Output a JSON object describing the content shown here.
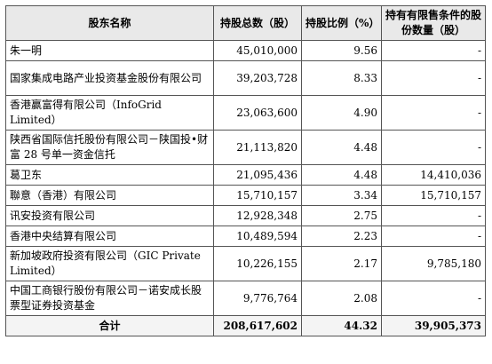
{
  "table": {
    "headers": [
      "股东名称",
      "持股总数（股）",
      "持股比例（%）",
      "持有有限售条件的股份数量（股）"
    ],
    "rows": [
      {
        "name": "朱一明",
        "shares": "45,010,000",
        "ratio": "9.56",
        "restricted": "-"
      },
      {
        "name": "国家集成电路产业投资基金股份有限公司",
        "shares": "39,203,728",
        "ratio": "8.33",
        "restricted": "-"
      },
      {
        "name": "香港赢富得有限公司（InfoGrid Limited）",
        "shares": "23,063,600",
        "ratio": "4.90",
        "restricted": "-"
      },
      {
        "name": "陕西省国际信托股份有限公司－陕国投•财富 28 号单一资金信托",
        "shares": "21,113,820",
        "ratio": "4.48",
        "restricted": "-"
      },
      {
        "name": "葛卫东",
        "shares": "21,095,436",
        "ratio": "4.48",
        "restricted": "14,410,036"
      },
      {
        "name": "聯意（香港）有限公司",
        "shares": "15,710,157",
        "ratio": "3.34",
        "restricted": "15,710,157"
      },
      {
        "name": "讯安投资有限公司",
        "shares": "12,928,348",
        "ratio": "2.75",
        "restricted": "-"
      },
      {
        "name": "香港中央结算有限公司",
        "shares": "10,489,594",
        "ratio": "2.23",
        "restricted": "-"
      },
      {
        "name": "新加坡政府投资有限公司（GIC Private Limited）",
        "shares": "10,226,155",
        "ratio": "2.17",
        "restricted": "9,785,180"
      },
      {
        "name": "中国工商银行股份有限公司－诺安成长股票型证券投资基金",
        "shares": "9,776,764",
        "ratio": "2.08",
        "restricted": "-"
      }
    ],
    "total": {
      "label": "合计",
      "shares": "208,617,602",
      "ratio": "44.32",
      "restricted": "39,905,373"
    }
  }
}
